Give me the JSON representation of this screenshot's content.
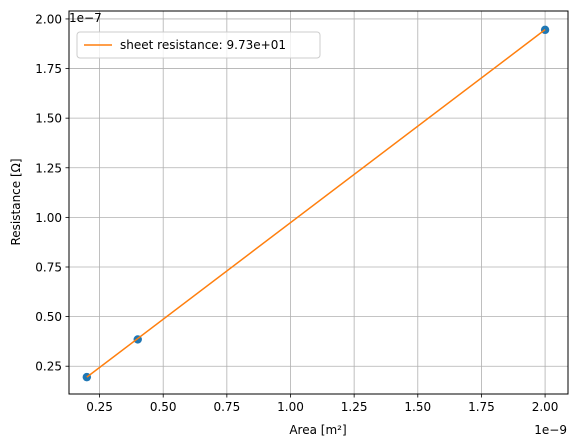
{
  "chart_data": {
    "type": "scatter",
    "xlabel": "Area [m²]",
    "ylabel": "Resistance [Ω]",
    "x_offset_label": "1e−9",
    "y_offset_label": "1e−7",
    "xlim": [
      0.13,
      2.09
    ],
    "ylim": [
      0.11,
      2.04
    ],
    "x_ticks": [
      0.25,
      0.5,
      0.75,
      1.0,
      1.25,
      1.5,
      1.75,
      2.0
    ],
    "x_tick_labels": [
      "0.25",
      "0.50",
      "0.75",
      "1.00",
      "1.25",
      "1.50",
      "1.75",
      "2.00"
    ],
    "y_ticks": [
      0.25,
      0.5,
      0.75,
      1.0,
      1.25,
      1.5,
      1.75,
      2.0
    ],
    "y_tick_labels": [
      "0.25",
      "0.50",
      "0.75",
      "1.00",
      "1.25",
      "1.50",
      "1.75",
      "2.00"
    ],
    "grid": true,
    "legend_position": "top-left",
    "series": [
      {
        "kind": "scatter",
        "color": "#1f77b4",
        "x": [
          0.2,
          0.4,
          2.0
        ],
        "y": [
          0.195,
          0.385,
          1.945
        ]
      },
      {
        "kind": "line",
        "name": "sheet resistance: 9.73e+01",
        "color": "#ff7f0e",
        "x": [
          0.2,
          2.0
        ],
        "y": [
          0.195,
          1.946
        ]
      }
    ]
  }
}
